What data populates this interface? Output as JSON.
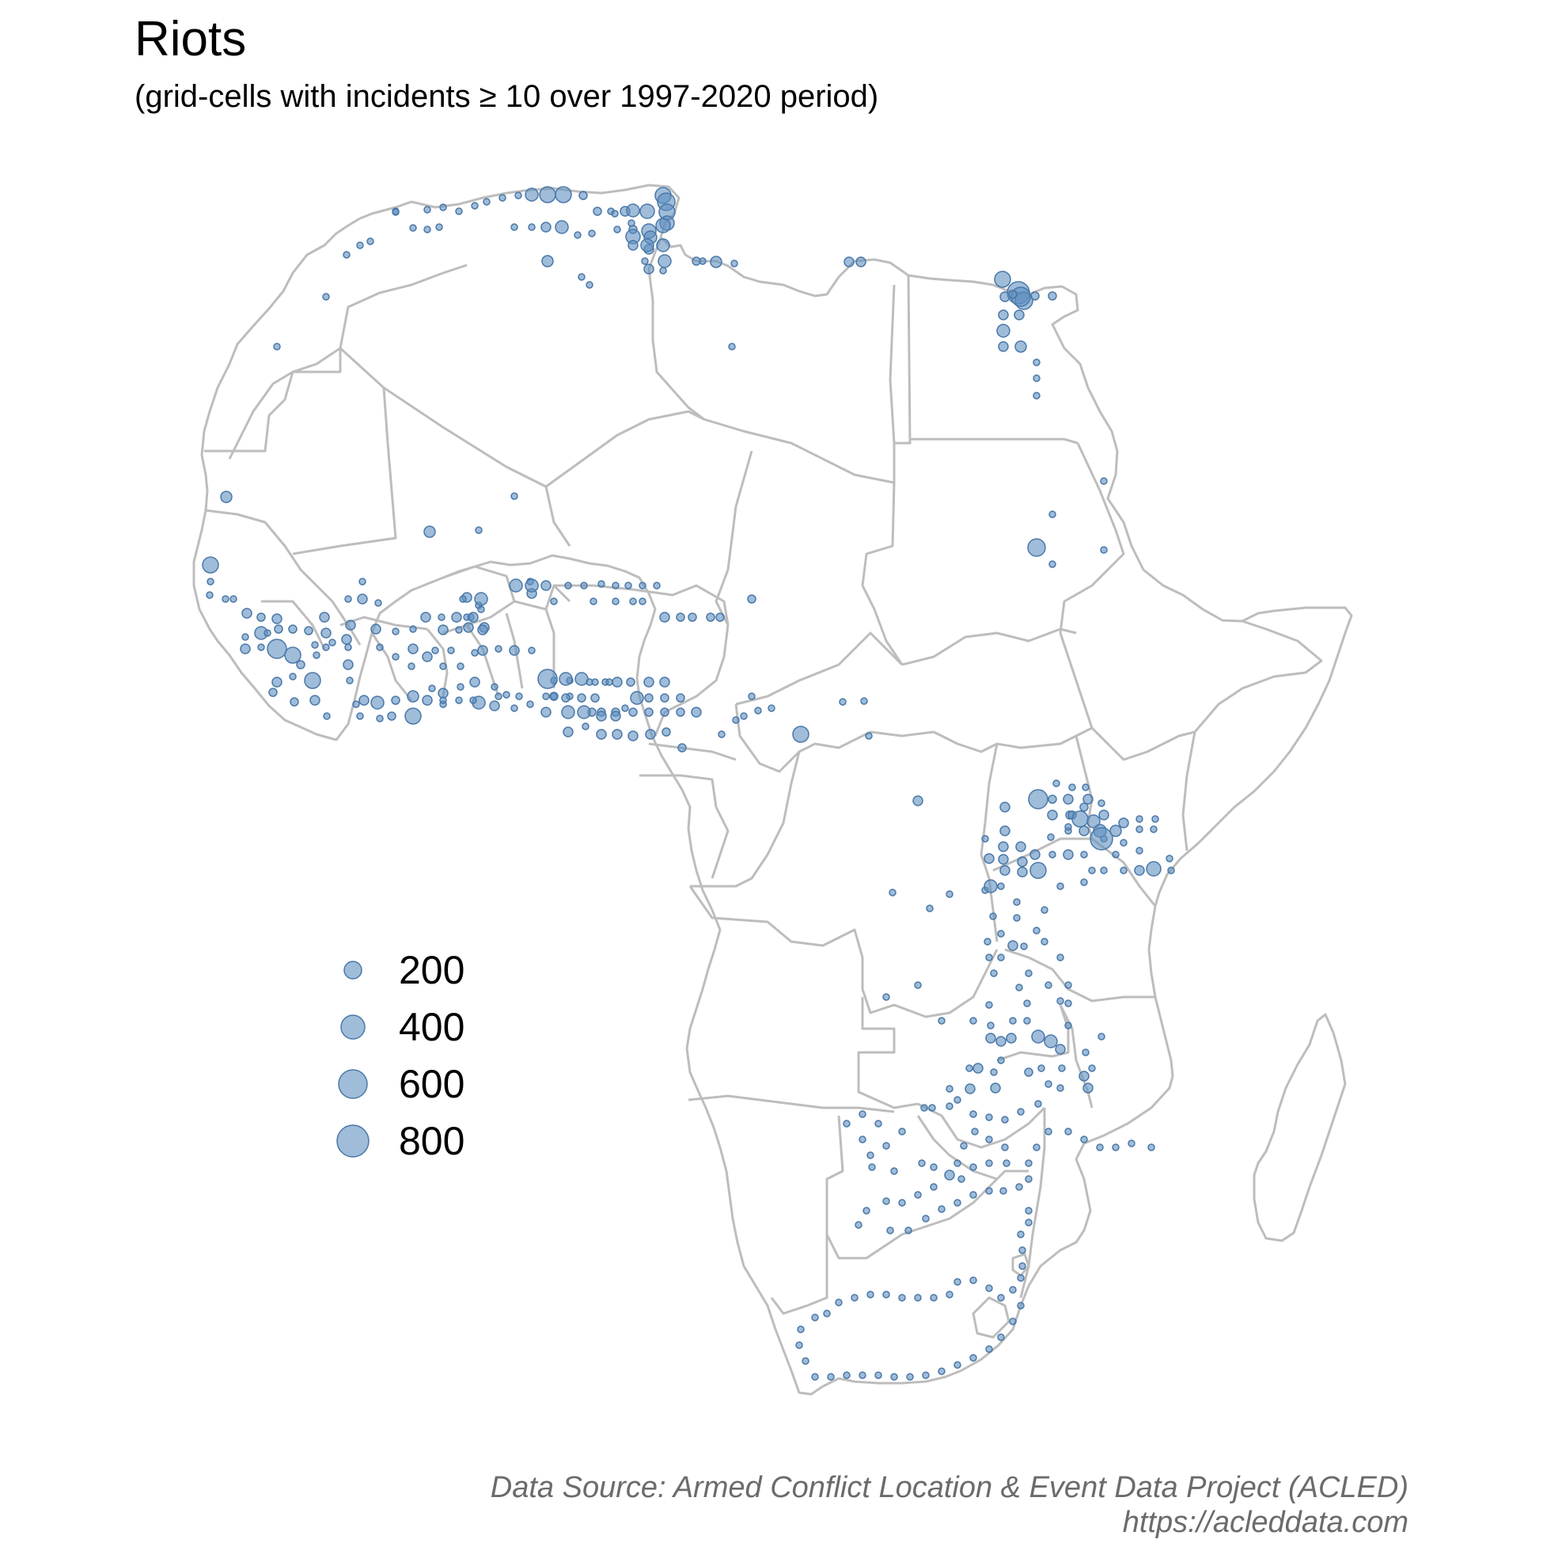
{
  "title": "Riots",
  "subtitle": "(grid-cells with incidents ≥ 10 over 1997-2020 period)",
  "caption": {
    "line1": "Data Source: Armed Conflict Location & Event Data Project (ACLED)",
    "line2": "https://acleddata.com"
  },
  "colors": {
    "point": "#5f8fbf",
    "point_stroke": "#4a78a8",
    "border": "#bdbdbd"
  },
  "chart_data": {
    "type": "scatter",
    "size_legend": [
      {
        "value": 200,
        "label": "200"
      },
      {
        "value": 400,
        "label": "400"
      },
      {
        "value": 600,
        "label": "600"
      },
      {
        "value": 800,
        "label": "800"
      }
    ]
  }
}
